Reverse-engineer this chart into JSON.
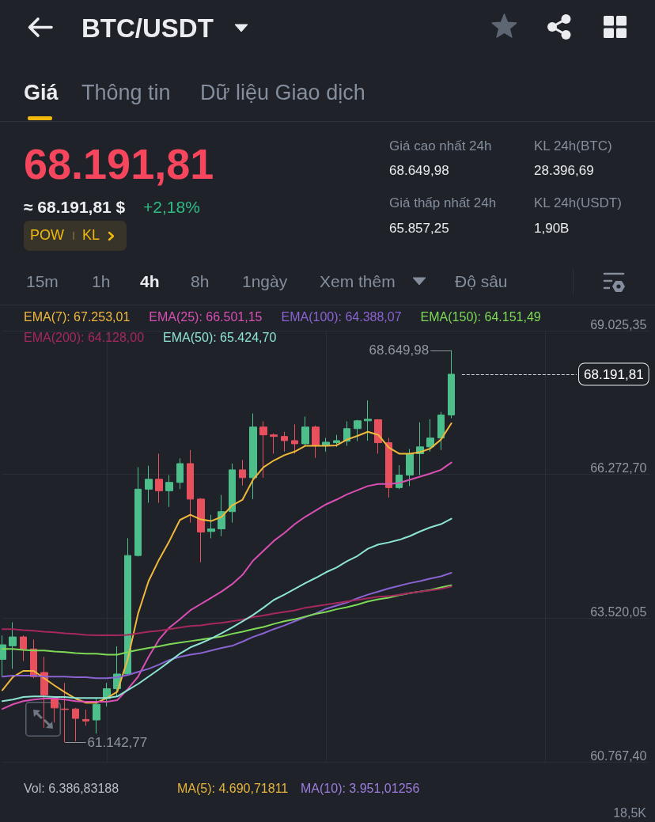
{
  "chart_data": {
    "type": "candlestick",
    "title": "BTC/USDT",
    "categories": [
      null,
      null,
      null,
      null,
      null,
      null,
      null,
      null,
      null,
      null,
      null,
      null,
      null,
      null,
      null,
      null,
      null,
      null,
      null,
      null,
      null,
      null,
      null,
      null,
      null,
      null,
      null,
      null,
      null,
      null,
      null,
      null,
      null,
      null,
      null,
      null,
      null,
      null,
      null,
      null,
      null,
      null,
      null,
      null
    ],
    "ohlc": [
      [
        62730,
        63190,
        62400,
        63010
      ],
      [
        62990,
        63440,
        62550,
        63160
      ],
      [
        63160,
        63190,
        62700,
        62930
      ],
      [
        62930,
        63110,
        62370,
        62400
      ],
      [
        62480,
        62780,
        61420,
        62050
      ],
      [
        61990,
        62010,
        61520,
        61800
      ],
      [
        61780,
        62280,
        61142.77,
        61770
      ],
      [
        61780,
        61800,
        61160,
        61600
      ],
      [
        61580,
        61770,
        61460,
        61550
      ],
      [
        61570,
        61990,
        61310,
        61870
      ],
      [
        61980,
        62280,
        61830,
        62170
      ],
      [
        62170,
        62980,
        62020,
        62450
      ],
      [
        62450,
        65050,
        62420,
        64720
      ],
      [
        64720,
        66410,
        64700,
        65990
      ],
      [
        65990,
        66440,
        65730,
        66180
      ],
      [
        66180,
        66670,
        65730,
        65960
      ],
      [
        65960,
        66260,
        65650,
        66120
      ],
      [
        66120,
        66580,
        65990,
        66480
      ],
      [
        66480,
        66740,
        65350,
        65800
      ],
      [
        65800,
        65820,
        64590,
        65170
      ],
      [
        65180,
        65500,
        65050,
        65230
      ],
      [
        65230,
        65880,
        65090,
        65560
      ],
      [
        65560,
        66480,
        65350,
        66360
      ],
      [
        66360,
        66550,
        66060,
        66210
      ],
      [
        66210,
        67440,
        65800,
        67180
      ],
      [
        67180,
        67290,
        66210,
        67030
      ],
      [
        67030,
        67060,
        66670,
        67000
      ],
      [
        67000,
        67090,
        66710,
        66920
      ],
      [
        66920,
        67230,
        66670,
        66860
      ],
      [
        66860,
        67380,
        66820,
        67180
      ],
      [
        67180,
        67210,
        66590,
        66820
      ],
      [
        66830,
        66970,
        66710,
        66890
      ],
      [
        66880,
        67030,
        66800,
        66920
      ],
      [
        66910,
        67290,
        66820,
        67150
      ],
      [
        67150,
        67320,
        66910,
        67300
      ],
      [
        67300,
        67690,
        66920,
        67330
      ],
      [
        67320,
        67330,
        66670,
        66880
      ],
      [
        66880,
        66970,
        65830,
        66020
      ],
      [
        66020,
        66450,
        65990,
        66260
      ],
      [
        66260,
        66760,
        66050,
        66670
      ],
      [
        66670,
        67270,
        66260,
        66800
      ],
      [
        66800,
        67330,
        66710,
        66970
      ],
      [
        66970,
        67470,
        66740,
        67410
      ],
      [
        67410,
        68649.98,
        67350,
        68191.81
      ]
    ],
    "colors": [
      "#4cbf8b",
      "#4cbf8b",
      "#e9505e",
      "#e9505e",
      "#e9505e",
      "#e9505e",
      "#e9505e",
      "#e9505e",
      "#e9505e",
      "#4cbf8b",
      "#4cbf8b",
      "#4cbf8b",
      "#4cbf8b",
      "#4cbf8b",
      "#4cbf8b",
      "#e9505e",
      "#4cbf8b",
      "#4cbf8b",
      "#e9505e",
      "#e9505e",
      "#4cbf8b",
      "#4cbf8b",
      "#4cbf8b",
      "#e9505e",
      "#4cbf8b",
      "#e9505e",
      "#e9505e",
      "#e9505e",
      "#e9505e",
      "#4cbf8b",
      "#e9505e",
      "#4cbf8b",
      "#4cbf8b",
      "#4cbf8b",
      "#4cbf8b",
      "#4cbf8b",
      "#e9505e",
      "#e9505e",
      "#4cbf8b",
      "#4cbf8b",
      "#4cbf8b",
      "#4cbf8b",
      "#4cbf8b",
      "#4cbf8b"
    ],
    "series": [
      {
        "name": "EMA(7): 67.253,01",
        "type": "line",
        "color": "#f0b93b",
        "values": [
          62140,
          62390,
          62510,
          62510,
          62370,
          62230,
          62100,
          61980,
          61900,
          61900,
          61990,
          62110,
          62730,
          63610,
          64230,
          64640,
          65000,
          65400,
          65500,
          65410,
          65380,
          65460,
          65680,
          65790,
          66170,
          66410,
          66540,
          66640,
          66710,
          66820,
          66820,
          66820,
          66830,
          66940,
          67010,
          67090,
          67030,
          66790,
          66670,
          66670,
          66700,
          66770,
          66940,
          67253.01
        ]
      },
      {
        "name": "EMA(25): 66.501,15",
        "type": "line",
        "color": "#d94fb4",
        "values": [
          61780,
          61870,
          61930,
          61960,
          61980,
          61980,
          61960,
          61930,
          61920,
          61920,
          61920,
          61950,
          62160,
          62400,
          62780,
          63110,
          63340,
          63500,
          63670,
          63790,
          63910,
          64030,
          64170,
          64350,
          64620,
          64810,
          65000,
          65150,
          65320,
          65460,
          65580,
          65700,
          65790,
          65890,
          65970,
          66050,
          66090,
          66090,
          66110,
          66170,
          66230,
          66290,
          66360,
          66501.15
        ]
      },
      {
        "name": "EMA(100): 64.388,07",
        "type": "line",
        "color": "#8a63d2",
        "values": [
          62400,
          62420,
          62420,
          62420,
          62400,
          62400,
          62400,
          62390,
          62390,
          62370,
          62370,
          62390,
          62430,
          62490,
          62550,
          62630,
          62720,
          62780,
          62820,
          62850,
          62900,
          62950,
          62990,
          63070,
          63160,
          63230,
          63310,
          63380,
          63460,
          63540,
          63610,
          63700,
          63760,
          63820,
          63900,
          63970,
          64030,
          64090,
          64140,
          64190,
          64230,
          64280,
          64320,
          64388.07
        ]
      },
      {
        "name": "EMA(150): 64.151,49",
        "type": "line",
        "color": "#7ed957",
        "values": [
          62930,
          62930,
          62910,
          62900,
          62900,
          62880,
          62870,
          62850,
          62840,
          62840,
          62820,
          62820,
          62870,
          62910,
          62950,
          62980,
          63020,
          63050,
          63080,
          63110,
          63140,
          63170,
          63220,
          63260,
          63310,
          63350,
          63410,
          63460,
          63500,
          63550,
          63600,
          63640,
          63690,
          63730,
          63780,
          63840,
          63880,
          63910,
          63960,
          64000,
          64030,
          64060,
          64110,
          64151.49
        ]
      },
      {
        "name": "EMA(200): 64.128,00",
        "type": "line",
        "color": "#a6285f",
        "values": [
          63310,
          63310,
          63290,
          63280,
          63260,
          63250,
          63230,
          63220,
          63200,
          63190,
          63190,
          63190,
          63200,
          63230,
          63260,
          63280,
          63310,
          63340,
          63370,
          63380,
          63410,
          63430,
          63460,
          63490,
          63540,
          63570,
          63610,
          63640,
          63670,
          63720,
          63750,
          63780,
          63810,
          63840,
          63870,
          63900,
          63930,
          63940,
          63970,
          64000,
          64030,
          64050,
          64080,
          64128.0
        ]
      },
      {
        "name": "EMA(50): 65.424,70",
        "type": "line",
        "color": "#8ee4d4",
        "values": [
          61930,
          61960,
          62010,
          62020,
          62020,
          62010,
          62010,
          61990,
          61990,
          61990,
          61990,
          62020,
          62140,
          62260,
          62400,
          62540,
          62690,
          62840,
          62960,
          63040,
          63130,
          63230,
          63340,
          63460,
          63580,
          63720,
          63870,
          63970,
          64080,
          64190,
          64290,
          64400,
          64490,
          64610,
          64710,
          64850,
          64930,
          64970,
          65020,
          65090,
          65180,
          65260,
          65320,
          65424.7
        ]
      }
    ],
    "ylim": [
      60767.4,
      69025.35
    ],
    "yticks": [
      {
        "value": 60767.4,
        "label": "60.767,40"
      },
      {
        "value": 63520.05,
        "label": "63.520,05"
      },
      {
        "value": 66272.7,
        "label": "66.272,70"
      },
      {
        "value": 69025.35,
        "label": "69.025,35"
      }
    ],
    "grid": true,
    "legend": "top",
    "marker": "none",
    "ref_lines": [
      {
        "axis": "y",
        "value": 68191.81,
        "label": "68.191,81",
        "line_style": "dashed",
        "color": "#c8ccd2"
      }
    ],
    "annotations": [
      "Giá",
      "Thông tin",
      "Dữ liệu Giao dịch",
      "68.191,81",
      "≈ 68.191,81 $",
      "+2,18%",
      "POW",
      "KL",
      "Giá cao nhất 24h",
      "68.649,98",
      "KL 24h(BTC)",
      "28.396,69",
      "Giá thấp nhất 24h",
      "65.857,25",
      "KL 24h(USDT)",
      "1,90B",
      "15m",
      "1h",
      "4h",
      "8h",
      "1ngày",
      "Xem thêm",
      "Độ sâu",
      "Vol: 6.386,83188",
      "MA(5): 4.690,71811",
      "MA(10): 3.951,01256",
      "18,5K",
      "68.649,98",
      "61.142,77"
    ]
  }
}
